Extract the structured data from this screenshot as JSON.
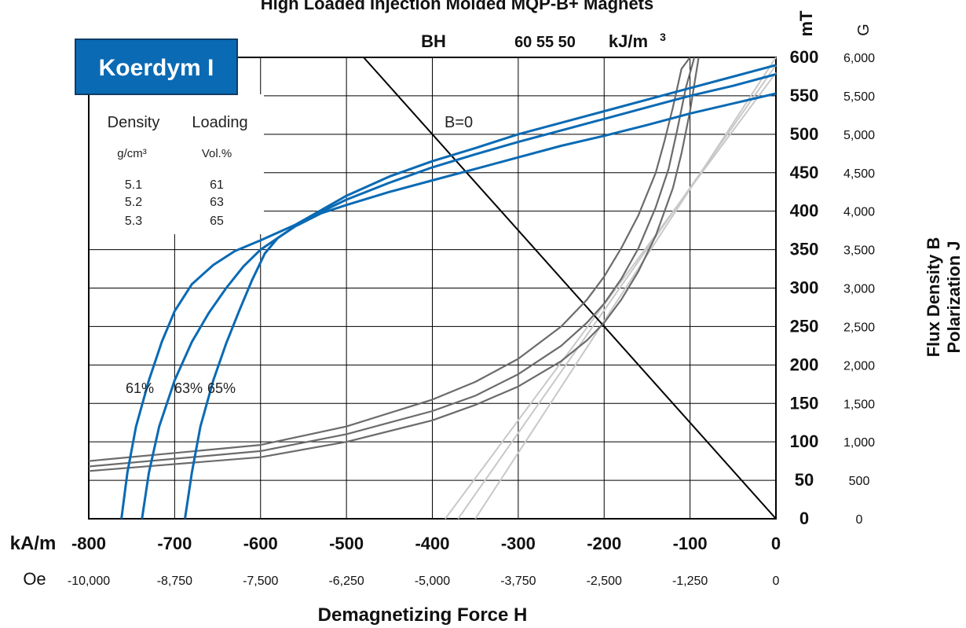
{
  "chart_data": {
    "type": "line",
    "title": "High Loaded Injection Molded MQP-B+ Magnets",
    "badge": "Koerdym I",
    "xlabel": "Demagnetizing Force H",
    "ylabel_lines": [
      "Flux Density B",
      "Polarization  J"
    ],
    "x_unit_si": "kA/m",
    "x_unit_cgs": "Oe",
    "y_unit_si": "mT",
    "y_unit_cgs": "G",
    "x_ticks": [
      -800,
      -700,
      -600,
      -500,
      -400,
      -300,
      -200,
      -100,
      0
    ],
    "x_ticks_cgs": [
      "-10,000",
      "-8,750",
      "-7,500",
      "-6,250",
      "-5,000",
      "-3,750",
      "-2,500",
      "-1,250",
      "0"
    ],
    "y_ticks": [
      0,
      50,
      100,
      150,
      200,
      250,
      300,
      350,
      400,
      450,
      500,
      550,
      600
    ],
    "y_ticks_cgs": [
      "0",
      "500",
      "1,000",
      "1,500",
      "2,000",
      "2,500",
      "3,000",
      "3,500",
      "4,000",
      "4,500",
      "5,000",
      "5,500",
      "6,000"
    ],
    "xlim": [
      -800,
      0
    ],
    "ylim": [
      0,
      600
    ],
    "bh_header": {
      "bh": "BH",
      "values": "60 55 50",
      "unit": "kJ/m",
      "unit_sup": "3"
    },
    "b0_label": "B=0",
    "table": {
      "headers": [
        "Density",
        "Loading"
      ],
      "units": [
        "g/cm³",
        "Vol.%"
      ],
      "rows": [
        [
          "5.1",
          "61"
        ],
        [
          "5.2",
          "63"
        ],
        [
          "5.3",
          "65"
        ]
      ]
    },
    "curve_labels": [
      "61%",
      "63%",
      "65%"
    ],
    "colors": {
      "j_curves": "#0a6ab4",
      "b_curves": "#6b6b6b",
      "bh_lines": "#c8c8c8",
      "badge": "#0a6ab4"
    },
    "series": [
      {
        "name": "61%",
        "kind": "J",
        "x": [
          -762,
          -755,
          -745,
          -730,
          -715,
          -700,
          -680,
          -655,
          -630,
          -600,
          -560,
          -500,
          -450,
          -400,
          -350,
          -300,
          -250,
          -200,
          -150,
          -100,
          -50,
          0
        ],
        "y": [
          0,
          60,
          120,
          180,
          230,
          270,
          305,
          330,
          348,
          362,
          382,
          420,
          445,
          465,
          482,
          500,
          515,
          530,
          545,
          560,
          575,
          590
        ]
      },
      {
        "name": "63%",
        "kind": "J",
        "x": [
          -738,
          -730,
          -718,
          -700,
          -680,
          -660,
          -640,
          -620,
          -600,
          -580,
          -550,
          -500,
          -450,
          -400,
          -350,
          -300,
          -250,
          -200,
          -150,
          -100,
          -50,
          0
        ],
        "y": [
          0,
          60,
          120,
          180,
          230,
          268,
          300,
          328,
          350,
          365,
          388,
          415,
          437,
          457,
          474,
          490,
          505,
          520,
          535,
          550,
          563,
          578
        ]
      },
      {
        "name": "65%",
        "kind": "J",
        "x": [
          -688,
          -680,
          -670,
          -655,
          -640,
          -625,
          -610,
          -595,
          -580,
          -560,
          -530,
          -500,
          -450,
          -400,
          -350,
          -300,
          -250,
          -200,
          -150,
          -100,
          -50,
          0
        ],
        "y": [
          0,
          60,
          120,
          180,
          228,
          270,
          310,
          345,
          365,
          380,
          397,
          408,
          425,
          440,
          455,
          470,
          485,
          498,
          512,
          527,
          540,
          553
        ]
      },
      {
        "name": "61%",
        "kind": "B",
        "x": [
          -800,
          -600,
          -500,
          -400,
          -350,
          -300,
          -250,
          -220,
          -200,
          -180,
          -160,
          -140,
          -130,
          -120,
          -110,
          -100
        ],
        "y": [
          75,
          96,
          120,
          155,
          178,
          208,
          250,
          285,
          315,
          352,
          395,
          450,
          490,
          535,
          585,
          630
        ]
      },
      {
        "name": "63%",
        "kind": "B",
        "x": [
          -800,
          -600,
          -500,
          -400,
          -350,
          -300,
          -250,
          -220,
          -200,
          -180,
          -160,
          -140,
          -125,
          -115,
          -105,
          -95
        ],
        "y": [
          68,
          88,
          110,
          140,
          160,
          188,
          225,
          255,
          280,
          312,
          352,
          405,
          455,
          505,
          560,
          620
        ]
      },
      {
        "name": "65%",
        "kind": "B",
        "x": [
          -800,
          -600,
          -500,
          -400,
          -350,
          -300,
          -250,
          -220,
          -200,
          -180,
          -160,
          -140,
          -120,
          -110,
          -100,
          -90
        ],
        "y": [
          62,
          80,
          100,
          128,
          148,
          172,
          205,
          232,
          255,
          285,
          322,
          368,
          430,
          475,
          530,
          600
        ]
      }
    ],
    "bh_lines": [
      {
        "x": [
          -385,
          0
        ],
        "y": [
          0,
          580
        ]
      },
      {
        "x": [
          -370,
          0
        ],
        "y": [
          0,
          590
        ]
      },
      {
        "x": [
          -350,
          0
        ],
        "y": [
          0,
          600
        ]
      }
    ],
    "load_line": {
      "x": [
        -480,
        0
      ],
      "y": [
        600,
        0
      ]
    },
    "grid": true
  }
}
